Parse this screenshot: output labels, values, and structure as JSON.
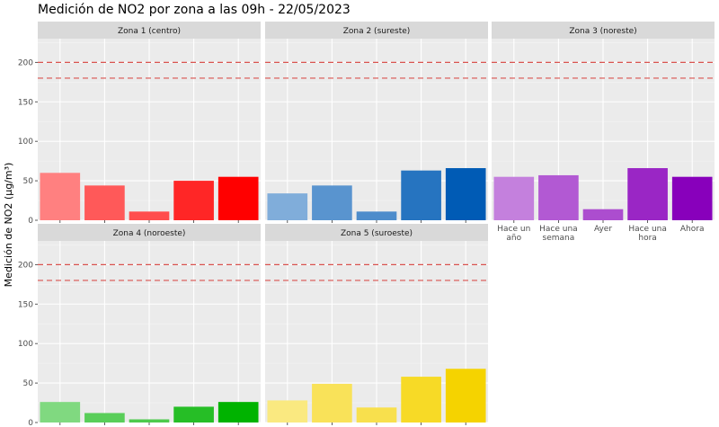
{
  "chart_data": {
    "type": "bar",
    "title": "Medición de NO2 por zona a las 09h - 22/05/2023",
    "ylabel": "Medición de NO2 (µg/m³)",
    "xlabel": "",
    "ylim": [
      0,
      230
    ],
    "yticks": [
      "0",
      "50",
      "100",
      "150",
      "200"
    ],
    "categories": [
      "Hace un año",
      "Hace una semana",
      "Ayer",
      "Hace una hora",
      "Ahora"
    ],
    "reference_lines": [
      180,
      200
    ],
    "reference_line_color": "#d9534f",
    "panels": [
      {
        "name": "Zona 1 (centro)",
        "values": [
          60,
          44,
          11,
          50,
          55
        ],
        "color": "#ff0000"
      },
      {
        "name": "Zona 2 (sureste)",
        "values": [
          34,
          44,
          11,
          63,
          66
        ],
        "color": "#005bb5"
      },
      {
        "name": "Zona 3 (noreste)",
        "values": [
          55,
          57,
          14,
          66,
          55
        ],
        "color": "#8800bb"
      },
      {
        "name": "Zona 4 (noroeste)",
        "values": [
          26,
          12,
          4,
          20,
          26
        ],
        "color": "#00b300"
      },
      {
        "name": "Zona 5 (suroeste)",
        "values": [
          28,
          49,
          19,
          58,
          68
        ],
        "color": "#f5d300"
      }
    ]
  }
}
